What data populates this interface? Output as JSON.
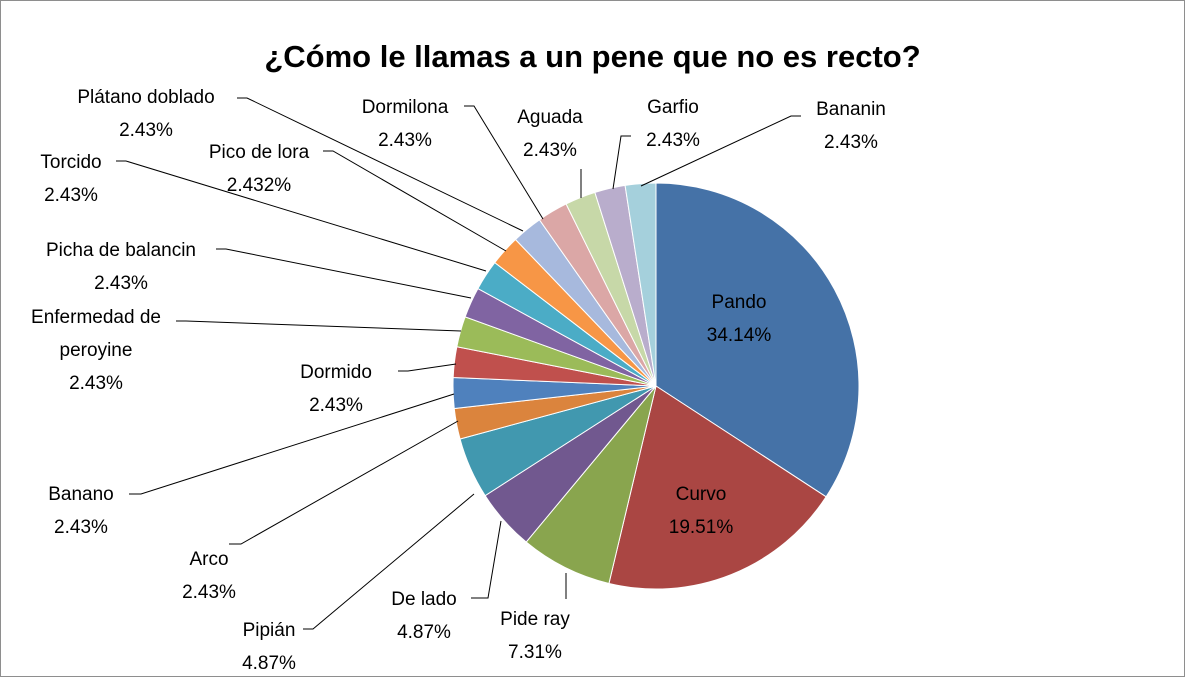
{
  "chart_data": {
    "type": "pie",
    "title": "¿Cómo le llamas a un pene que no es recto?",
    "categories": [
      "Pando",
      "Curvo",
      "Pide ray",
      "De lado",
      "Pipián",
      "Arco",
      "Banano",
      "Dormido",
      "Enfermedad de peroyine",
      "Picha de balancin",
      "Torcido",
      "Pico de lora",
      "Plátano doblado",
      "Dormilona",
      "Aguada",
      "Garfio",
      "Bananin"
    ],
    "values": [
      34.14,
      19.51,
      7.31,
      4.87,
      4.87,
      2.43,
      2.43,
      2.43,
      2.43,
      2.43,
      2.43,
      2.432,
      2.43,
      2.43,
      2.43,
      2.43,
      2.43
    ],
    "value_labels": [
      "34.14%",
      "19.51%",
      "7.31%",
      "4.87%",
      "4.87%",
      "2.43%",
      "2.43%",
      "2.43%",
      "2.43%",
      "2.43%",
      "2.43%",
      "2.432%",
      "2.43%",
      "2.43%",
      "2.43%",
      "2.43%",
      "2.43%"
    ],
    "colors": [
      "#4572a7",
      "#aa4643",
      "#89a54e",
      "#71588f",
      "#4198af",
      "#db843d",
      "#4f81bd",
      "#c0504d",
      "#9bbb59",
      "#8064a2",
      "#4bacc6",
      "#f79646",
      "#a7b9dd",
      "#dba7a6",
      "#c7d8a8",
      "#b9adcc",
      "#a5d0dc"
    ]
  }
}
